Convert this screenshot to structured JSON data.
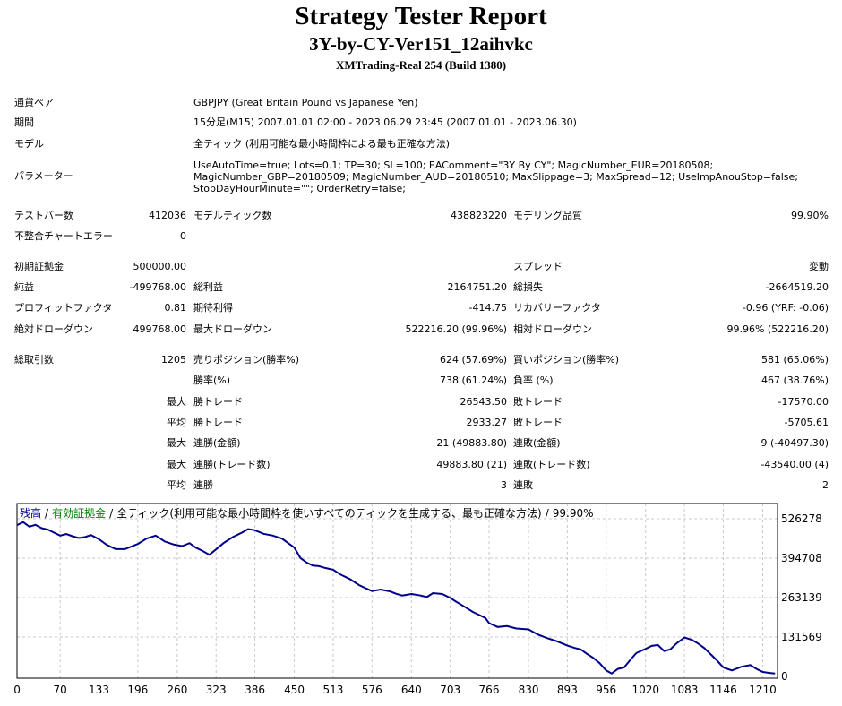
{
  "header": {
    "title": "Strategy Tester Report",
    "subtitle": "3Y-by-CY-Ver151_12aihvkc",
    "server": "XMTrading-Real 254 (Build 1380)"
  },
  "info": {
    "symbol_label": "通貨ペア",
    "symbol_value": "GBPJPY (Great Britain Pound vs Japanese Yen)",
    "period_label": "期間",
    "period_value": "15分足(M15) 2007.01.01 02:00 - 2023.06.29 23:45 (2007.01.01 - 2023.06.30)",
    "model_label": "モデル",
    "model_value": "全ティック (利用可能な最小時間枠による最も正確な方法)",
    "params_label": "パラメーター",
    "params_value": "UseAutoTime=true; Lots=0.1; TP=30; SL=100; EAComment=\"3Y By CY\"; MagicNumber_EUR=20180508; MagicNumber_GBP=20180509; MagicNumber_AUD=20180510; MaxSlippage=3; MaxSpread=12; UseImpAnouStop=false; StopDayHourMinute=\"\"; OrderRetry=false;"
  },
  "stats": {
    "bars_label": "テストバー数",
    "bars_value": "412036",
    "ticks_label": "モデルティック数",
    "ticks_value": "438823220",
    "quality_label": "モデリング品質",
    "quality_value": "99.90%",
    "mismatch_label": "不整合チャートエラー",
    "mismatch_value": "0",
    "deposit_label": "初期証拠金",
    "deposit_value": "500000.00",
    "spread_label": "スプレッド",
    "spread_value": "変動",
    "net_label": "純益",
    "net_value": "-499768.00",
    "gross_profit_label": "総利益",
    "gross_profit_value": "2164751.20",
    "gross_loss_label": "総損失",
    "gross_loss_value": "-2664519.20",
    "pf_label": "プロフィットファクタ",
    "pf_value": "0.81",
    "expected_label": "期待利得",
    "expected_value": "-414.75",
    "recovery_label": "リカバリーファクタ",
    "recovery_value": "-0.96 (YRF: -0.06)",
    "abs_dd_label": "絶対ドローダウン",
    "abs_dd_value": "499768.00",
    "max_dd_label": "最大ドローダウン",
    "max_dd_value": "522216.20 (99.96%)",
    "rel_dd_label": "相対ドローダウン",
    "rel_dd_value": "99.96% (522216.20)",
    "total_label": "総取引数",
    "total_value": "1205",
    "short_label": "売りポジション(勝率%)",
    "short_value": "624 (57.69%)",
    "long_label": "買いポジション(勝率%)",
    "long_value": "581 (65.06%)",
    "win_label": "勝率(%)",
    "win_value": "738 (61.24%)",
    "loss_label": "負率 (%)",
    "loss_value": "467 (38.76%)",
    "max_label1": "最大",
    "largest_win_label": "勝トレード",
    "largest_win_value": "26543.50",
    "largest_loss_label": "敗トレード",
    "largest_loss_value": "-17570.00",
    "avg_label1": "平均",
    "avg_win_label": "勝トレード",
    "avg_win_value": "2933.27",
    "avg_loss_label": "敗トレード",
    "avg_loss_value": "-5705.61",
    "max_label2": "最大",
    "cons_wins_label": "連勝(金額)",
    "cons_wins_value": "21 (49883.80)",
    "cons_losses_label": "連敗(金額)",
    "cons_losses_value": "9 (-40497.30)",
    "max_label3": "最大",
    "cons_profit_label": "連勝(トレード数)",
    "cons_profit_value": "49883.80 (21)",
    "cons_loss_label": "連敗(トレード数)",
    "cons_loss_value": "-43540.00 (4)",
    "avg_label2": "平均",
    "avg_cons_win_label": "連勝",
    "avg_cons_win_value": "3",
    "avg_cons_loss_label": "連敗",
    "avg_cons_loss_value": "2"
  },
  "chart_data": {
    "type": "line",
    "legend": {
      "balance": "残高",
      "sep1": "/",
      "equity": "有効証拠金",
      "sep2": "/",
      "rest": "全ティック(利用可能な最小時間枠を使いすべてのティックを生成する、最も正確な方法)",
      "sep3": "/",
      "quality": "99.90%"
    },
    "colors": {
      "balance": "#00008b",
      "equity": "#008000",
      "grid": "#c8c8c8",
      "frame": "#000000"
    },
    "ylim": [
      0,
      526278
    ],
    "xlim": [
      0,
      1234
    ],
    "y_ticks": [
      0,
      131569,
      263139,
      394708,
      526278
    ],
    "x_ticks": [
      0,
      70,
      133,
      196,
      260,
      323,
      386,
      450,
      513,
      576,
      640,
      703,
      766,
      830,
      893,
      956,
      1020,
      1083,
      1146,
      1210
    ],
    "series": [
      {
        "x": [
          0,
          10,
          20,
          30,
          40,
          50,
          60,
          70,
          80,
          90,
          100,
          110,
          120,
          133,
          145,
          160,
          175,
          196,
          210,
          225,
          240,
          255,
          268,
          280,
          290,
          300,
          312,
          323,
          335,
          350,
          365,
          375,
          386,
          400,
          415,
          430,
          440,
          450,
          460,
          470,
          480,
          490,
          500,
          513,
          525,
          540,
          555,
          565,
          576,
          590,
          605,
          615,
          625,
          640,
          655,
          665,
          675,
          690,
          703,
          712,
          720,
          730,
          740,
          750,
          760,
          766,
          780,
          795,
          810,
          830,
          845,
          860,
          875,
          893,
          905,
          915,
          925,
          935,
          945,
          956,
          965,
          975,
          985,
          995,
          1005,
          1020,
          1030,
          1040,
          1050,
          1060,
          1070,
          1083,
          1095,
          1105,
          1115,
          1125,
          1135,
          1146,
          1160,
          1175,
          1190,
          1200,
          1210,
          1220,
          1230
        ],
        "values": [
          505000,
          515000,
          500000,
          506000,
          495000,
          490000,
          480000,
          470000,
          475000,
          468000,
          462000,
          465000,
          472000,
          458000,
          440000,
          425000,
          425000,
          442000,
          460000,
          470000,
          450000,
          440000,
          435000,
          445000,
          430000,
          420000,
          406000,
          424000,
          445000,
          465000,
          480000,
          492000,
          488000,
          476000,
          470000,
          460000,
          445000,
          430000,
          395000,
          380000,
          370000,
          368000,
          362000,
          356000,
          340000,
          325000,
          305000,
          295000,
          285000,
          290000,
          284000,
          276000,
          270000,
          275000,
          270000,
          265000,
          278000,
          275000,
          262000,
          250000,
          240000,
          228000,
          215000,
          205000,
          195000,
          178000,
          165000,
          168000,
          160000,
          157000,
          140000,
          128000,
          118000,
          103000,
          95000,
          90000,
          75000,
          62000,
          45000,
          20000,
          10000,
          25000,
          30000,
          55000,
          78000,
          92000,
          102000,
          105000,
          85000,
          90000,
          110000,
          130000,
          122000,
          110000,
          95000,
          75000,
          55000,
          30000,
          20000,
          32000,
          38000,
          25000,
          15000,
          12000,
          10000
        ]
      }
    ]
  }
}
